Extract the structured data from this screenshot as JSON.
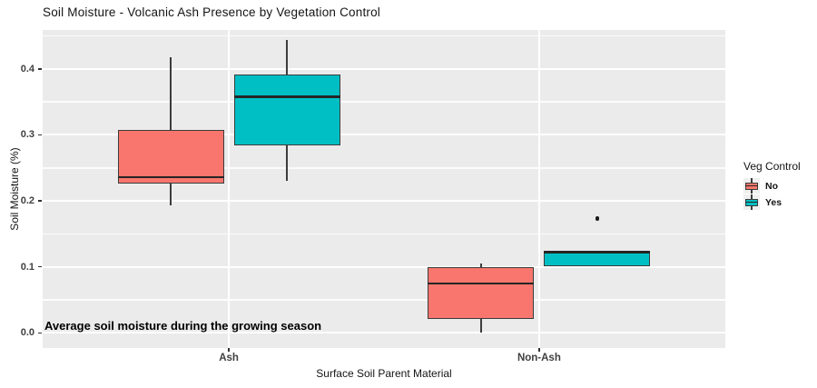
{
  "title": "Soil Moisture - Volcanic Ash Presence by Vegetation Control",
  "annotation": "Average soil moisture during the growing season",
  "x_axis": {
    "title": "Surface Soil Parent Material",
    "categories": [
      "Ash",
      "Non-Ash"
    ]
  },
  "y_axis": {
    "title": "Soil Moisture (%)",
    "tick_labels": [
      "0.0",
      "0.1",
      "0.2",
      "0.3",
      "0.4"
    ]
  },
  "legend": {
    "title": "Veg Control",
    "items": [
      {
        "label": "No",
        "color": "#F8766D"
      },
      {
        "label": "Yes",
        "color": "#00BFC4"
      }
    ]
  },
  "colors": {
    "panel_background": "#EBEBEB",
    "gridline": "#FFFFFF",
    "box_border": "#3C3C3C",
    "series_no": "#F8766D",
    "series_yes": "#00BFC4",
    "outlier": "#1A1A1A"
  },
  "chart_data": {
    "type": "boxplot",
    "title": "Soil Moisture - Volcanic Ash Presence by Vegetation Control",
    "xlabel": "Surface Soil Parent Material",
    "ylabel": "Soil Moisture (%)",
    "categories": [
      "Ash",
      "Non-Ash"
    ],
    "ylim": [
      -0.023,
      0.459
    ],
    "y_major_ticks": [
      0.0,
      0.1,
      0.2,
      0.3,
      0.4
    ],
    "y_minor_ticks": [
      0.05,
      0.15,
      0.25,
      0.35,
      0.45
    ],
    "grid": true,
    "legend_title": "Veg Control",
    "legend_position": "right",
    "annotation": "Average soil moisture during the growing season",
    "series": [
      {
        "name": "No",
        "color": "#F8766D",
        "boxes": [
          {
            "category": "Ash",
            "min": 0.193,
            "q1": 0.226,
            "median": 0.236,
            "q3": 0.307,
            "max": 0.417,
            "outliers": []
          },
          {
            "category": "Non-Ash",
            "min": 0.0,
            "q1": 0.021,
            "median": 0.075,
            "q3": 0.099,
            "max": 0.105,
            "outliers": []
          }
        ]
      },
      {
        "name": "Yes",
        "color": "#00BFC4",
        "boxes": [
          {
            "category": "Ash",
            "min": 0.23,
            "q1": 0.284,
            "median": 0.358,
            "q3": 0.391,
            "max": 0.444,
            "outliers": []
          },
          {
            "category": "Non-Ash",
            "min": 0.101,
            "q1": 0.101,
            "median": 0.122,
            "q3": 0.124,
            "max": 0.124,
            "outliers": [
              0.173
            ]
          }
        ]
      }
    ]
  }
}
